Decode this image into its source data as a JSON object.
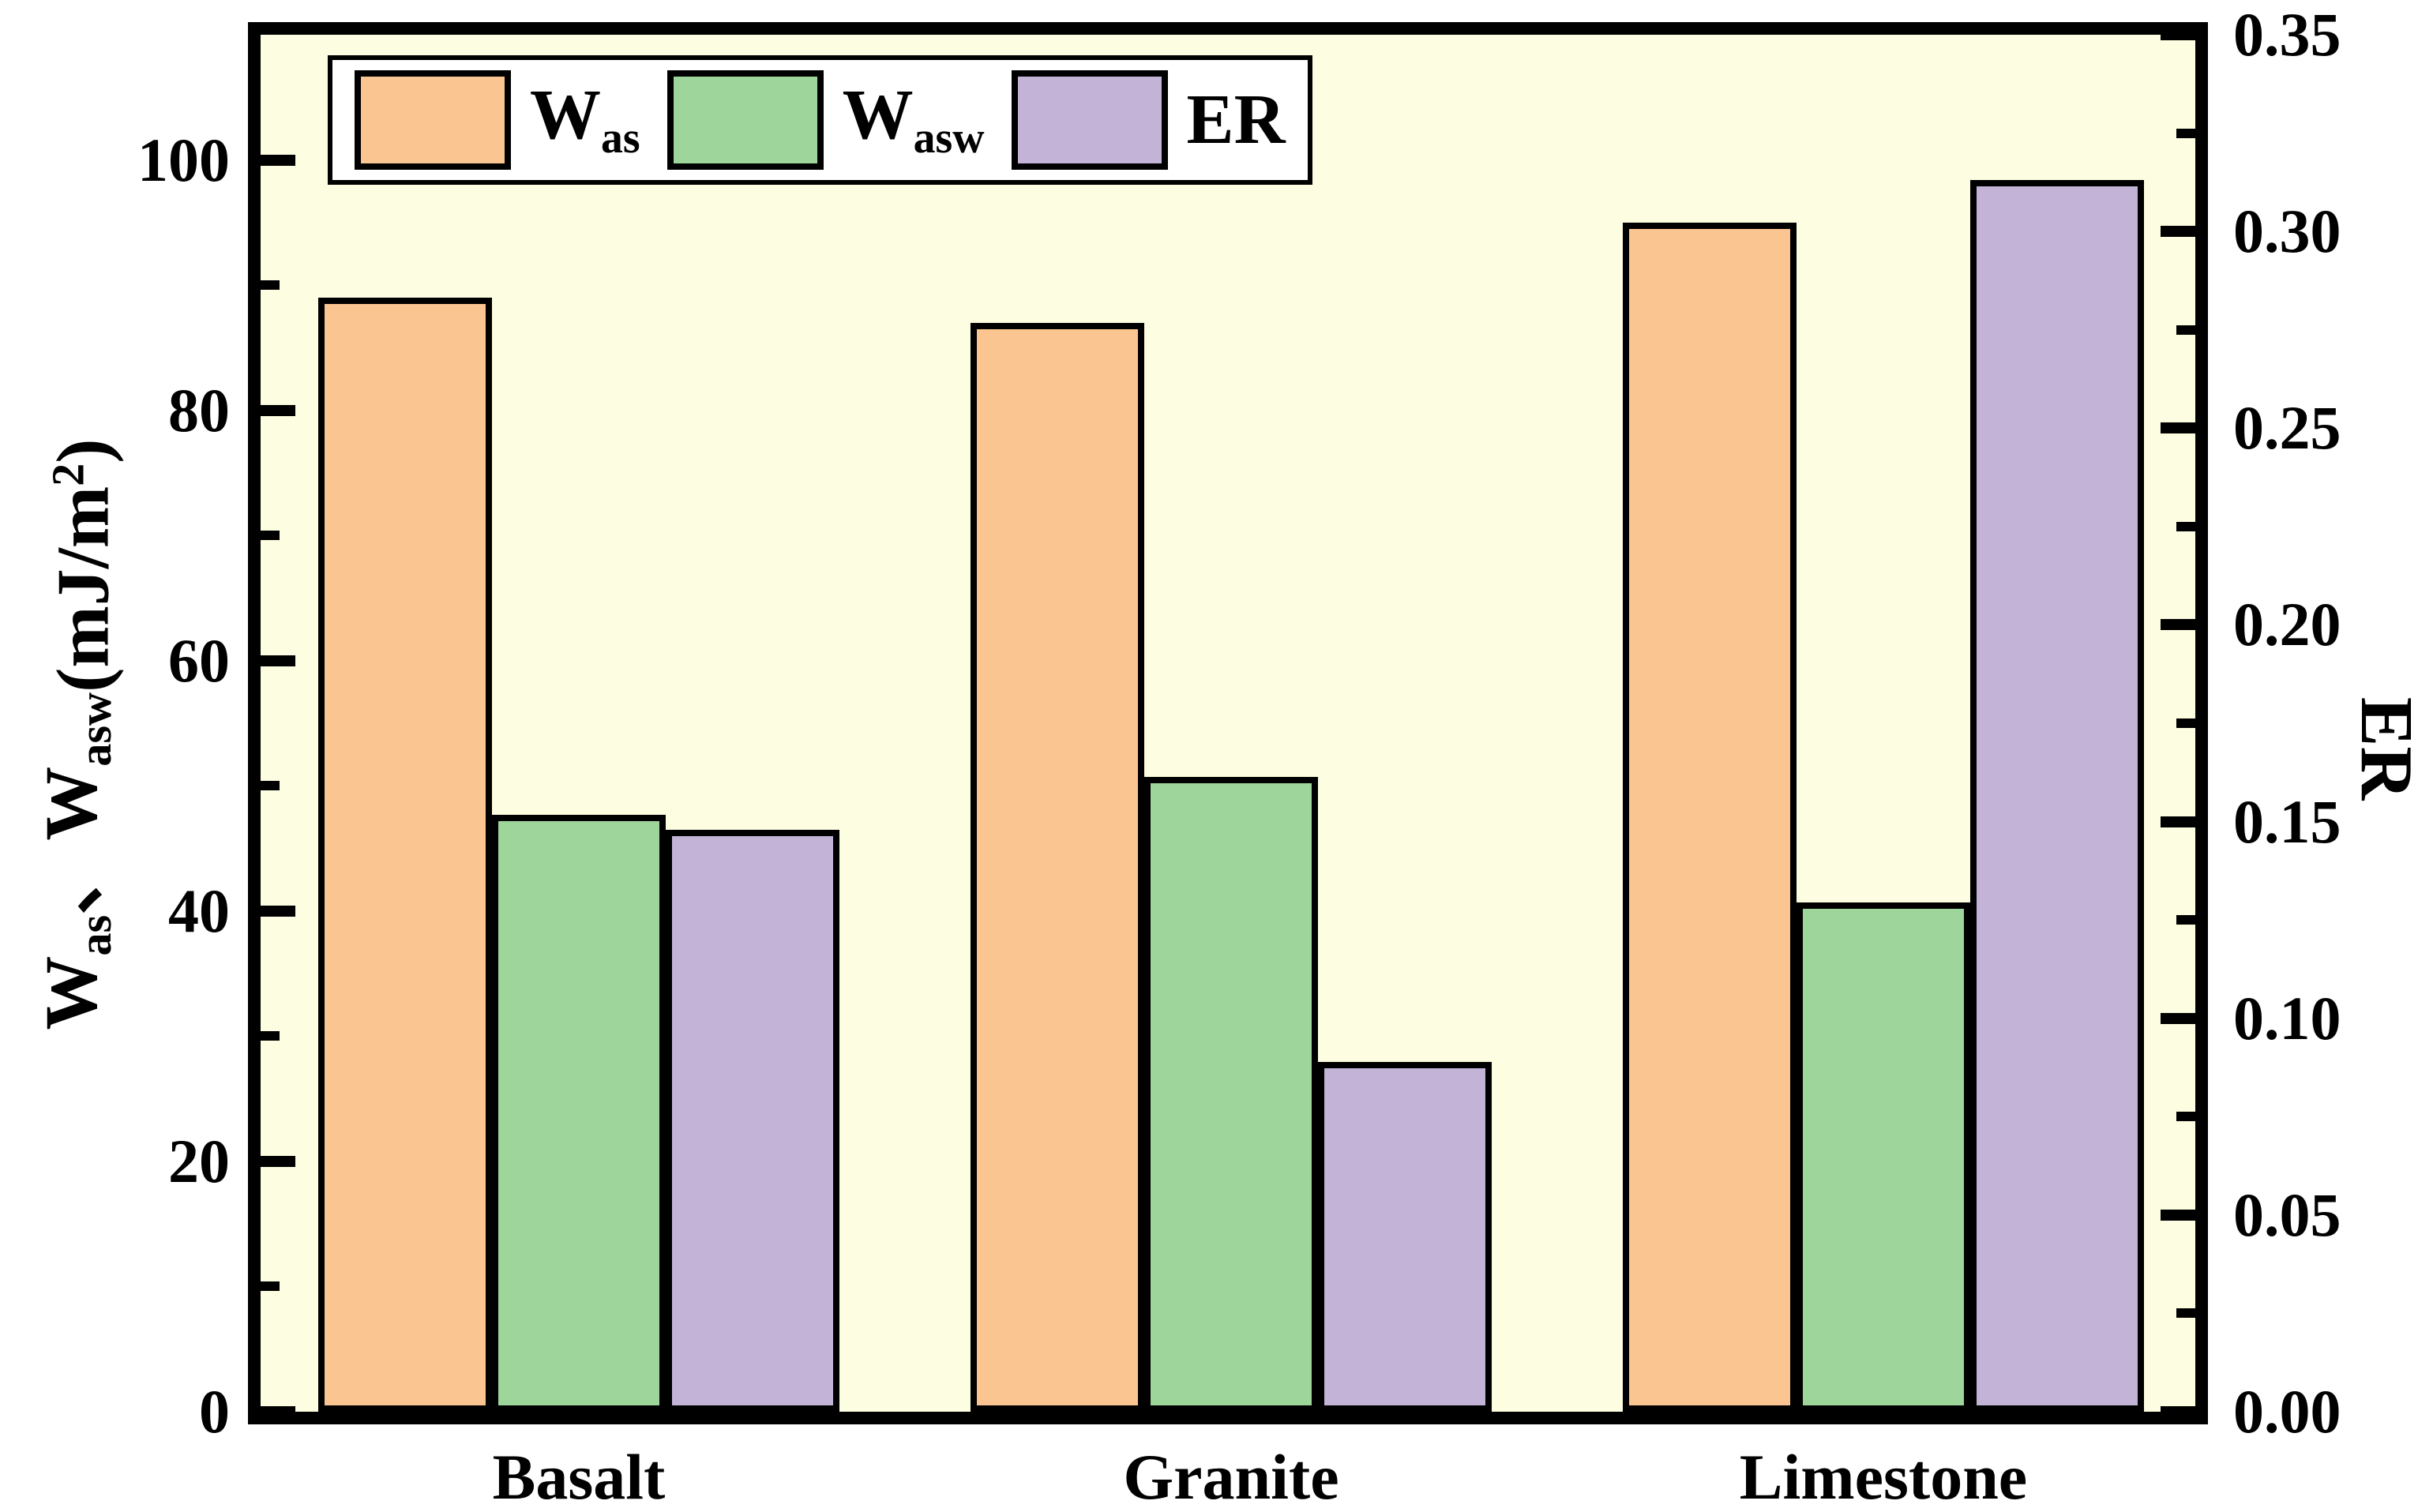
{
  "chart_data": {
    "type": "bar",
    "title": "",
    "categories": [
      "Basalt",
      "Granite",
      "Limestone"
    ],
    "series": [
      {
        "name": "Was",
        "label_text": "Was",
        "label_parts": [
          {
            "t": "W"
          },
          {
            "t": "as",
            "style": "sub"
          }
        ],
        "axis": "left",
        "color": "#FAC591",
        "values": [
          89,
          87,
          95
        ]
      },
      {
        "name": "Wasw",
        "label_text": "Wasw",
        "label_parts": [
          {
            "t": "W"
          },
          {
            "t": "asw",
            "style": "sub"
          }
        ],
        "axis": "left",
        "color": "#9DD59B",
        "values": [
          47.7,
          50.7,
          40.7
        ]
      },
      {
        "name": "ER",
        "label_text": "ER",
        "label_parts": [
          {
            "t": "ER"
          }
        ],
        "axis": "right",
        "color": "#C2B3D7",
        "values": [
          0.148,
          0.089,
          0.313
        ]
      }
    ],
    "left_axis": {
      "title_text": "Was、Wasw(mJ/m2)",
      "title_parts": [
        {
          "t": "W"
        },
        {
          "t": "as",
          "style": "sub"
        },
        {
          "t": "、"
        },
        {
          "t": "W"
        },
        {
          "t": "asw",
          "style": "sub"
        },
        {
          "t": "(mJ/m",
          "style": "low"
        },
        {
          "t": "2",
          "style": "lowsup"
        },
        {
          "t": ")",
          "style": "low"
        }
      ],
      "min": 0,
      "max": 110,
      "major_ticks": [
        0,
        20,
        40,
        60,
        80,
        100
      ],
      "major_tick_labels": [
        "0",
        "20",
        "40",
        "60",
        "80",
        "100"
      ],
      "minor_ticks": [
        10,
        30,
        50,
        70,
        90
      ]
    },
    "right_axis": {
      "title_text": "ER",
      "min": 0,
      "max": 0.35,
      "major_ticks": [
        0.0,
        0.05,
        0.1,
        0.15,
        0.2,
        0.25,
        0.3,
        0.35
      ],
      "major_tick_labels": [
        "0.00",
        "0.05",
        "0.10",
        "0.15",
        "0.20",
        "0.25",
        "0.30",
        "0.35"
      ],
      "minor_ticks": [
        0.025,
        0.075,
        0.125,
        0.175,
        0.225,
        0.275,
        0.325
      ]
    },
    "legend_position": "top-left",
    "grid": false,
    "colors": {
      "plot_background": "#FDFDE1",
      "page_background": "#FFFFFF",
      "frame": "#000000",
      "bar_border": "#000000"
    }
  }
}
